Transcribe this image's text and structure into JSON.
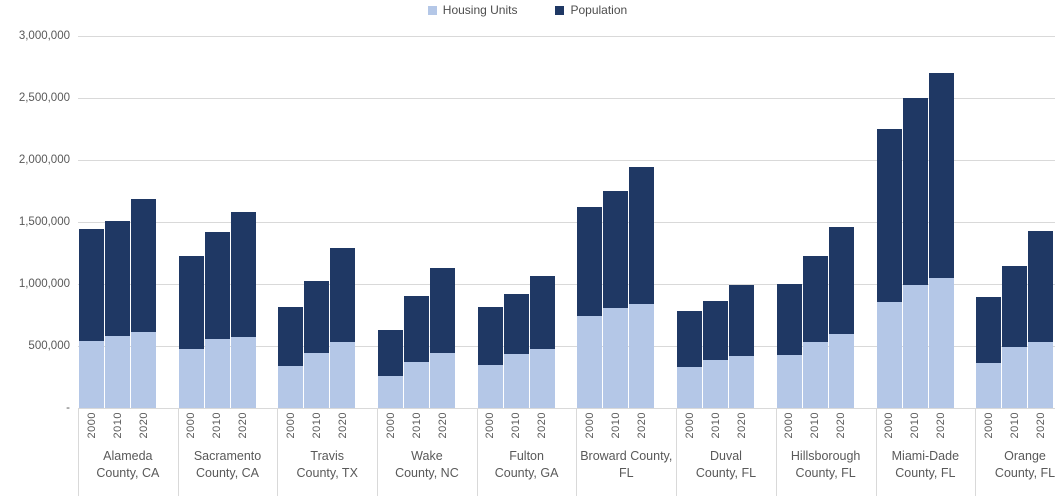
{
  "legend": {
    "items": [
      {
        "label": "Housing Units",
        "color": "#B4C7E7"
      },
      {
        "label": "Population",
        "color": "#1F3864"
      }
    ],
    "position": "top-center"
  },
  "y_axis": {
    "tick_labels": [
      "3,000,000",
      "2,500,000",
      "2,000,000",
      "1,500,000",
      "1,000,000",
      "500,000",
      "-"
    ],
    "tick_values": [
      3000000,
      2500000,
      2000000,
      1500000,
      1000000,
      500000,
      0
    ]
  },
  "colors": {
    "housing_units": "#B4C7E7",
    "population": "#1F3864",
    "gridline": "#D9D9D9",
    "axis_text": "#595959",
    "background": "#FFFFFF"
  },
  "chart_data": {
    "type": "bar",
    "variant": "overlay-columns (population bar behind, housing units bar in front, both from zero)",
    "title": "",
    "xlabel": "",
    "ylabel": "",
    "ylim": [
      0,
      3000000
    ],
    "y_tick_interval": 500000,
    "grid": true,
    "legend_position": "top-center",
    "years": [
      "2000",
      "2010",
      "2020"
    ],
    "series_names": [
      "Housing Units",
      "Population"
    ],
    "groups": [
      {
        "county": "Alameda County, CA",
        "label_lines": [
          "Alameda",
          "County, CA"
        ],
        "housing_units": [
          540183,
          582549,
          609337
        ],
        "population": [
          1443741,
          1510271,
          1682353
        ]
      },
      {
        "county": "Sacramento County, CA",
        "label_lines": [
          "Sacramento",
          "County, CA"
        ],
        "housing_units": [
          474814,
          555932,
          575577
        ],
        "population": [
          1223499,
          1418788,
          1585055
        ]
      },
      {
        "county": "Travis County, TX",
        "label_lines": [
          "Travis",
          "County, TX"
        ],
        "housing_units": [
          335881,
          441240,
          532581
        ],
        "population": [
          812280,
          1024266,
          1290188
        ]
      },
      {
        "county": "Wake County, NC",
        "label_lines": [
          "Wake",
          "County, NC"
        ],
        "housing_units": [
          258953,
          371917,
          440000
        ],
        "population": [
          627846,
          900993,
          1129410
        ]
      },
      {
        "county": "Fulton County, GA",
        "label_lines": [
          "Fulton",
          "County, GA"
        ],
        "housing_units": [
          348632,
          437107,
          478000
        ],
        "population": [
          816006,
          920581,
          1066710
        ]
      },
      {
        "county": "Broward County, FL",
        "label_lines": [
          "Broward County,",
          "FL"
        ],
        "housing_units": [
          741043,
          810388,
          839697
        ],
        "population": [
          1623018,
          1748066,
          1944375
        ]
      },
      {
        "county": "Duval County, FL",
        "label_lines": [
          "Duval",
          "County, FL"
        ],
        "housing_units": [
          329778,
          388486,
          421201
        ],
        "population": [
          778879,
          864263,
          995567
        ]
      },
      {
        "county": "Hillsborough County, FL",
        "label_lines": [
          "Hillsborough",
          "County, FL"
        ],
        "housing_units": [
          425962,
          533448,
          595127
        ],
        "population": [
          998948,
          1229226,
          1459762
        ]
      },
      {
        "county": "Miami-Dade County, FL",
        "label_lines": [
          "Miami-Dade",
          "County, FL"
        ],
        "housing_units": [
          852278,
          989435,
          1046000
        ],
        "population": [
          2253362,
          2496435,
          2701767
        ]
      },
      {
        "county": "Orange County, FL",
        "label_lines": [
          "Orange",
          "County, FL"
        ],
        "housing_units": [
          361349,
          494981,
          531000
        ],
        "population": [
          896344,
          1145956,
          1429908
        ]
      }
    ]
  }
}
